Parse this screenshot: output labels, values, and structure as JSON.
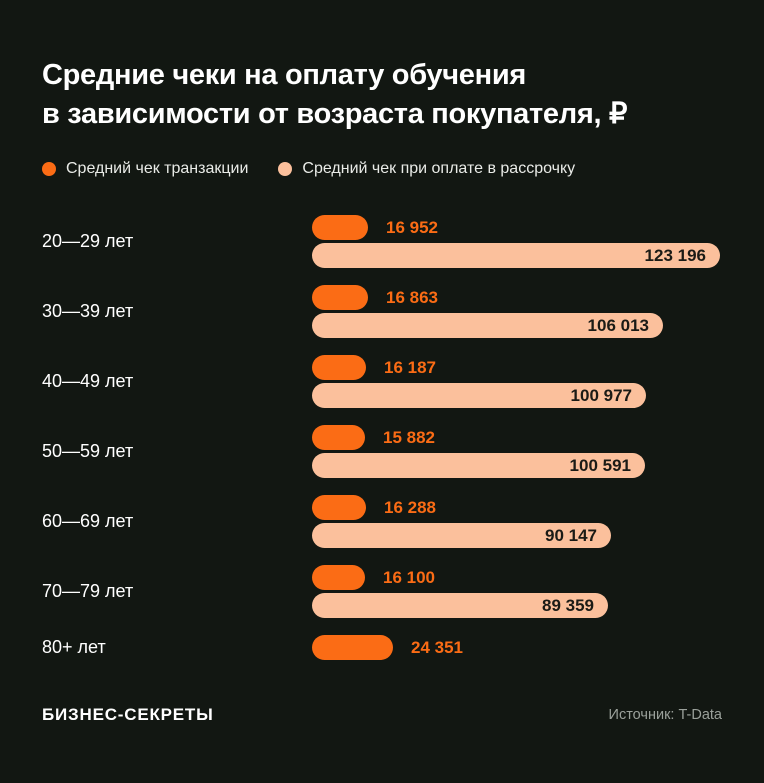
{
  "title": {
    "line1": "Средние чеки на оплату обучения",
    "line2": "в зависимости от возраста покупателя, ₽"
  },
  "chart_data": {
    "type": "bar",
    "orientation": "horizontal",
    "title": "Средние чеки на оплату обучения в зависимости от возраста покупателя, ₽",
    "unit": "₽",
    "grid": false,
    "legend_position": "top",
    "categories": [
      "20—29 лет",
      "30—39 лет",
      "40—49 лет",
      "50—59 лет",
      "60—69 лет",
      "70—79 лет",
      "80+ лет"
    ],
    "series": [
      {
        "name": "Средний чек транзакции",
        "color": "#FB6C15",
        "values": [
          16952,
          16863,
          16187,
          15882,
          16288,
          16100,
          24351
        ]
      },
      {
        "name": "Средний чек при оплате в рассрочку",
        "color": "#FBC09C",
        "values": [
          123196,
          106013,
          100977,
          100591,
          90147,
          89359,
          null
        ]
      }
    ],
    "x_max": 123196,
    "value_label_format": "space-separated thousands"
  },
  "footer": {
    "logo": "БИЗНЕС-СЕКРЕТЫ",
    "source": "Источник: T-Data"
  },
  "colors": {
    "background": "#121712",
    "accent": "#FB6C15",
    "accent_light": "#FBC09C",
    "text": "#FFFFFF",
    "muted": "#9AA09A"
  }
}
